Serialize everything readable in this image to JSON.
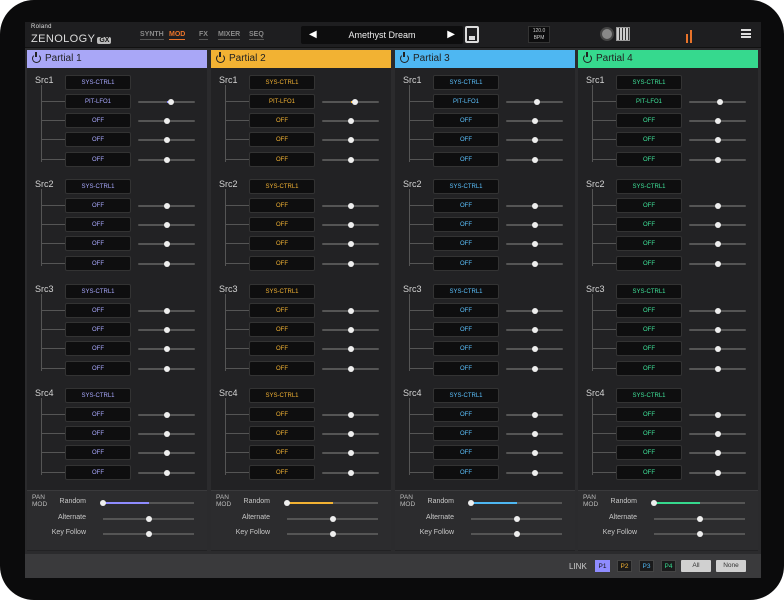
{
  "app": {
    "maker": "Roland",
    "product": "ZENOLOGY",
    "edition": "GX"
  },
  "tabs": [
    {
      "label": "SYNTH",
      "active": false
    },
    {
      "label": "MOD",
      "active": true
    },
    {
      "label": "FX",
      "active": false
    },
    {
      "label": "MIXER",
      "active": false
    },
    {
      "label": "SEQ",
      "active": false
    }
  ],
  "patch": {
    "name": "Amethyst Dream",
    "prev_icon": "prev-arrow-icon",
    "next_icon": "next-arrow-icon"
  },
  "tempo": {
    "value": "120.0",
    "unit": "BPM"
  },
  "icons": [
    "save-icon",
    "knob-view-icon",
    "keyboard-icon",
    "level-meter-icon",
    "menu-icon"
  ],
  "partials": [
    {
      "title": "Partial 1",
      "color": "#a9a7f7",
      "accent": "#8f8cff",
      "text_color": "#a9a9ff",
      "sources": [
        {
          "label": "Src1",
          "select": "SYS-CTRL1",
          "rows": [
            {
              "dest": "PIT-LFO1",
              "amount": 0.58,
              "bipolar_fill": true
            },
            {
              "dest": "OFF",
              "amount": 0.5
            },
            {
              "dest": "OFF",
              "amount": 0.5
            },
            {
              "dest": "OFF",
              "amount": 0.5
            }
          ]
        },
        {
          "label": "Src2",
          "select": "SYS-CTRL1",
          "rows": [
            {
              "dest": "OFF",
              "amount": 0.5
            },
            {
              "dest": "OFF",
              "amount": 0.5
            },
            {
              "dest": "OFF",
              "amount": 0.5
            },
            {
              "dest": "OFF",
              "amount": 0.5
            }
          ]
        },
        {
          "label": "Src3",
          "select": "SYS-CTRL1",
          "rows": [
            {
              "dest": "OFF",
              "amount": 0.5
            },
            {
              "dest": "OFF",
              "amount": 0.5
            },
            {
              "dest": "OFF",
              "amount": 0.5
            },
            {
              "dest": "OFF",
              "amount": 0.5
            }
          ]
        },
        {
          "label": "Src4",
          "select": "SYS-CTRL1",
          "rows": [
            {
              "dest": "OFF",
              "amount": 0.5
            },
            {
              "dest": "OFF",
              "amount": 0.5
            },
            {
              "dest": "OFF",
              "amount": 0.5
            },
            {
              "dest": "OFF",
              "amount": 0.5
            }
          ]
        }
      ],
      "pan_mod": {
        "label_line1": "PAN",
        "label_line2": "MOD",
        "random": 0.5,
        "alternate": 0.5,
        "key_follow": 0.5
      }
    },
    {
      "title": "Partial 2",
      "color": "#f2b233",
      "accent": "#f2b233",
      "text_color": "#f2b233",
      "sources": [
        {
          "label": "Src1",
          "select": "SYS-CTRL1",
          "rows": [
            {
              "dest": "PIT-LFO1",
              "amount": 0.58,
              "bipolar_fill": true
            },
            {
              "dest": "OFF",
              "amount": 0.5
            },
            {
              "dest": "OFF",
              "amount": 0.5
            },
            {
              "dest": "OFF",
              "amount": 0.5
            }
          ]
        },
        {
          "label": "Src2",
          "select": "SYS-CTRL1",
          "rows": [
            {
              "dest": "OFF",
              "amount": 0.5
            },
            {
              "dest": "OFF",
              "amount": 0.5
            },
            {
              "dest": "OFF",
              "amount": 0.5
            },
            {
              "dest": "OFF",
              "amount": 0.5
            }
          ]
        },
        {
          "label": "Src3",
          "select": "SYS-CTRL1",
          "rows": [
            {
              "dest": "OFF",
              "amount": 0.5
            },
            {
              "dest": "OFF",
              "amount": 0.5
            },
            {
              "dest": "OFF",
              "amount": 0.5
            },
            {
              "dest": "OFF",
              "amount": 0.5
            }
          ]
        },
        {
          "label": "Src4",
          "select": "SYS-CTRL1",
          "rows": [
            {
              "dest": "OFF",
              "amount": 0.5
            },
            {
              "dest": "OFF",
              "amount": 0.5
            },
            {
              "dest": "OFF",
              "amount": 0.5
            },
            {
              "dest": "OFF",
              "amount": 0.5
            }
          ]
        }
      ],
      "pan_mod": {
        "label_line1": "PAN",
        "label_line2": "MOD",
        "random": 0.5,
        "alternate": 0.5,
        "key_follow": 0.5
      }
    },
    {
      "title": "Partial 3",
      "color": "#4eb7f2",
      "accent": "#4eb7f2",
      "text_color": "#5cc2ff",
      "sources": [
        {
          "label": "Src1",
          "select": "SYS-CTRL1",
          "rows": [
            {
              "dest": "PIT-LFO1",
              "amount": 0.55,
              "bipolar_fill": true
            },
            {
              "dest": "OFF",
              "amount": 0.5
            },
            {
              "dest": "OFF",
              "amount": 0.5
            },
            {
              "dest": "OFF",
              "amount": 0.5
            }
          ]
        },
        {
          "label": "Src2",
          "select": "SYS-CTRL1",
          "rows": [
            {
              "dest": "OFF",
              "amount": 0.5
            },
            {
              "dest": "OFF",
              "amount": 0.5
            },
            {
              "dest": "OFF",
              "amount": 0.5
            },
            {
              "dest": "OFF",
              "amount": 0.5
            }
          ]
        },
        {
          "label": "Src3",
          "select": "SYS-CTRL1",
          "rows": [
            {
              "dest": "OFF",
              "amount": 0.5
            },
            {
              "dest": "OFF",
              "amount": 0.5
            },
            {
              "dest": "OFF",
              "amount": 0.5
            },
            {
              "dest": "OFF",
              "amount": 0.5
            }
          ]
        },
        {
          "label": "Src4",
          "select": "SYS-CTRL1",
          "rows": [
            {
              "dest": "OFF",
              "amount": 0.5
            },
            {
              "dest": "OFF",
              "amount": 0.5
            },
            {
              "dest": "OFF",
              "amount": 0.5
            },
            {
              "dest": "OFF",
              "amount": 0.5
            }
          ]
        }
      ],
      "pan_mod": {
        "label_line1": "PAN",
        "label_line2": "MOD",
        "random": 0.5,
        "alternate": 0.5,
        "key_follow": 0.5
      }
    },
    {
      "title": "Partial 4",
      "color": "#36d98e",
      "accent": "#36d98e",
      "text_color": "#3fe39a",
      "sources": [
        {
          "label": "Src1",
          "select": "SYS-CTRL1",
          "rows": [
            {
              "dest": "PIT-LFO1",
              "amount": 0.55,
              "bipolar_fill": true
            },
            {
              "dest": "OFF",
              "amount": 0.5
            },
            {
              "dest": "OFF",
              "amount": 0.5
            },
            {
              "dest": "OFF",
              "amount": 0.5
            }
          ]
        },
        {
          "label": "Src2",
          "select": "SYS-CTRL1",
          "rows": [
            {
              "dest": "OFF",
              "amount": 0.5
            },
            {
              "dest": "OFF",
              "amount": 0.5
            },
            {
              "dest": "OFF",
              "amount": 0.5
            },
            {
              "dest": "OFF",
              "amount": 0.5
            }
          ]
        },
        {
          "label": "Src3",
          "select": "SYS-CTRL1",
          "rows": [
            {
              "dest": "OFF",
              "amount": 0.5
            },
            {
              "dest": "OFF",
              "amount": 0.5
            },
            {
              "dest": "OFF",
              "amount": 0.5
            },
            {
              "dest": "OFF",
              "amount": 0.5
            }
          ]
        },
        {
          "label": "Src4",
          "select": "SYS-CTRL1",
          "rows": [
            {
              "dest": "OFF",
              "amount": 0.5
            },
            {
              "dest": "OFF",
              "amount": 0.5
            },
            {
              "dest": "OFF",
              "amount": 0.5
            },
            {
              "dest": "OFF",
              "amount": 0.5
            }
          ]
        }
      ],
      "pan_mod": {
        "label_line1": "PAN",
        "label_line2": "MOD",
        "random": 0.5,
        "alternate": 0.5,
        "key_follow": 0.5
      }
    }
  ],
  "pan_mod_labels": {
    "random": "Random",
    "alternate": "Alternate",
    "key_follow": "Key Follow"
  },
  "link": {
    "label": "LINK",
    "buttons": [
      {
        "label": "P1",
        "color": "#8f8cff",
        "selected": true
      },
      {
        "label": "P2",
        "color": "#f2b233",
        "selected": false
      },
      {
        "label": "P3",
        "color": "#4eb7f2",
        "selected": false
      },
      {
        "label": "P4",
        "color": "#36d98e",
        "selected": false
      }
    ],
    "all_label": "All",
    "none_label": "None"
  }
}
